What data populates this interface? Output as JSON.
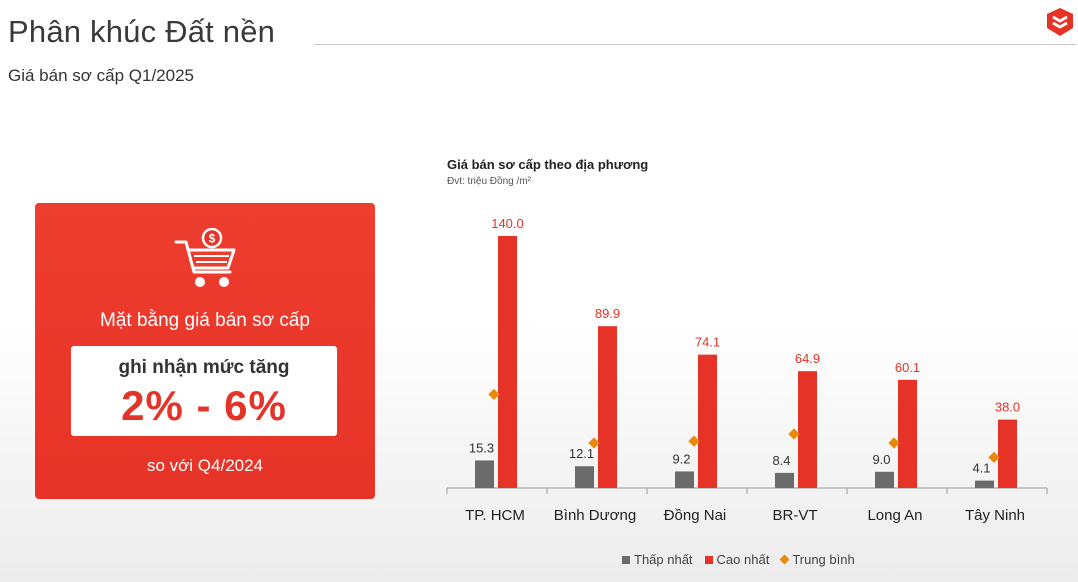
{
  "header": {
    "title": "Phân khúc Đất nền",
    "subtitle": "Giá bán sơ cấp Q1/2025",
    "logo_icon": "brand-logo-icon"
  },
  "card": {
    "icon": "shopping-cart-dollar-icon",
    "heading": "Mặt bằng giá bán sơ cấp",
    "box_text": "ghi nhận mức tăng",
    "box_value": "2% - 6%",
    "footer": "so với Q4/2024",
    "color": "#e63327"
  },
  "chart_data": {
    "type": "bar",
    "title": "Giá bán sơ cấp theo địa phương",
    "unit": "Đvt: triệu Đồng /m²",
    "categories": [
      "TP. HCM",
      "Bình Dương",
      "Đồng Nai",
      "BR-VT",
      "Long An",
      "Tây Ninh"
    ],
    "series": [
      {
        "name": "Thấp nhất",
        "kind": "bar",
        "color": "#6b6b6b",
        "values": [
          15.3,
          12.1,
          9.2,
          8.4,
          9.0,
          4.1
        ],
        "labels": [
          "15.3",
          "12.1",
          "9.2",
          "8.4",
          "9.0",
          "4.1"
        ]
      },
      {
        "name": "Cao nhất",
        "kind": "bar",
        "color": "#e63327",
        "values": [
          140.0,
          89.9,
          74.1,
          64.9,
          60.1,
          38.0
        ],
        "labels": [
          "140.0",
          "89.9",
          "74.1",
          "64.9",
          "60.1",
          "38.0"
        ]
      },
      {
        "name": "Trung bình",
        "kind": "marker",
        "color": "#e8890c",
        "values": [
          52,
          25,
          26,
          30,
          25,
          17
        ]
      }
    ],
    "ylim": [
      0,
      140
    ],
    "grid": false,
    "legend_position": "bottom"
  }
}
